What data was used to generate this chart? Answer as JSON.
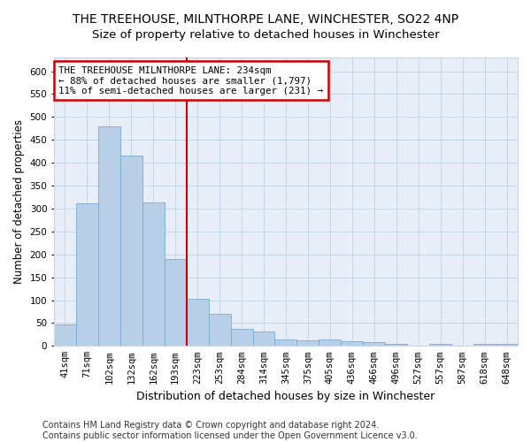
{
  "title": "THE TREEHOUSE, MILNTHORPE LANE, WINCHESTER, SO22 4NP",
  "subtitle": "Size of property relative to detached houses in Winchester",
  "xlabel": "Distribution of detached houses by size in Winchester",
  "ylabel": "Number of detached properties",
  "categories": [
    "41sqm",
    "71sqm",
    "102sqm",
    "132sqm",
    "162sqm",
    "193sqm",
    "223sqm",
    "253sqm",
    "284sqm",
    "314sqm",
    "345sqm",
    "375sqm",
    "405sqm",
    "436sqm",
    "466sqm",
    "496sqm",
    "527sqm",
    "557sqm",
    "587sqm",
    "618sqm",
    "648sqm"
  ],
  "values": [
    46,
    311,
    480,
    415,
    313,
    190,
    103,
    70,
    38,
    31,
    15,
    12,
    15,
    10,
    8,
    5,
    0,
    5,
    0,
    5,
    5
  ],
  "bar_color": "#b8cfe8",
  "bar_edge_color": "#7aaad0",
  "vline_x": 6,
  "annotation_line1": "THE TREEHOUSE MILNTHORPE LANE: 234sqm",
  "annotation_line2": "← 88% of detached houses are smaller (1,797)",
  "annotation_line3": "11% of semi-detached houses are larger (231) →",
  "annotation_box_color": "#ffffff",
  "annotation_box_edge_color": "#cc0000",
  "ylim": [
    0,
    630
  ],
  "yticks": [
    0,
    50,
    100,
    150,
    200,
    250,
    300,
    350,
    400,
    450,
    500,
    550,
    600
  ],
  "bg_color": "#ffffff",
  "plot_bg_color": "#e8eef8",
  "grid_color": "#c8d4e8",
  "footer_text": "Contains HM Land Registry data © Crown copyright and database right 2024.\nContains public sector information licensed under the Open Government Licence v3.0.",
  "title_fontsize": 10,
  "xlabel_fontsize": 9,
  "ylabel_fontsize": 8.5,
  "tick_fontsize": 7.5,
  "footer_fontsize": 7
}
